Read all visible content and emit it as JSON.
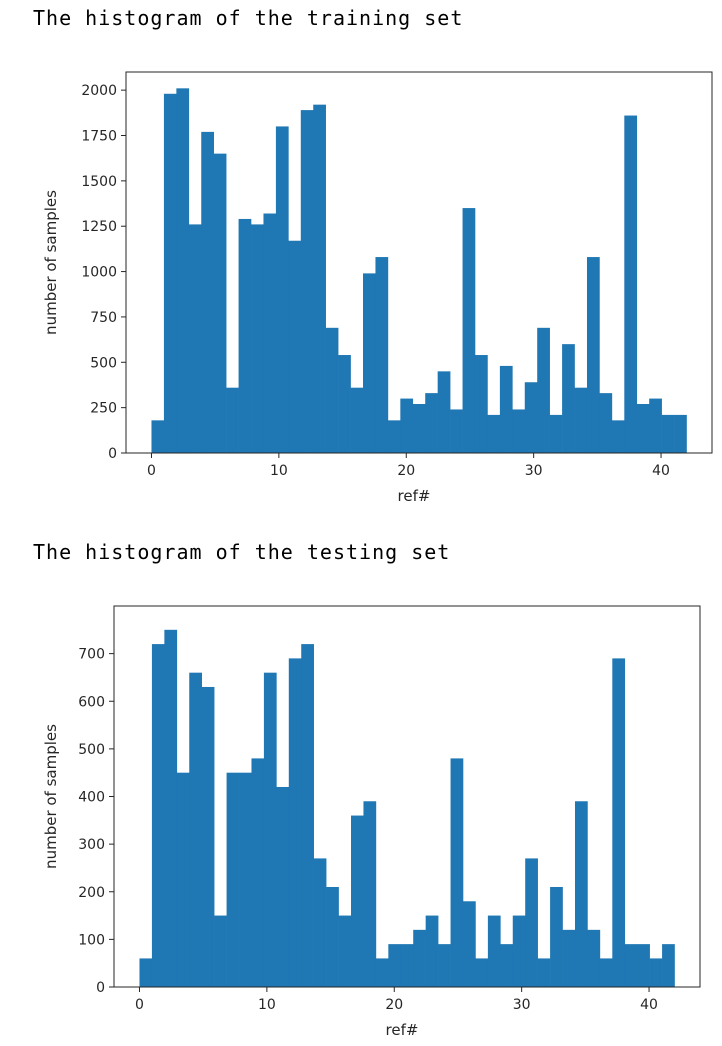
{
  "headings": {
    "training": "The histogram of the training set",
    "testing": "The histogram of the testing set"
  },
  "chart_data": [
    {
      "type": "bar",
      "id": "training",
      "xlabel": "ref#",
      "ylabel": "number of samples",
      "bin_start": 0,
      "bin_end": 42,
      "bins": 43,
      "xlim": [
        -2,
        44
      ],
      "ylim": [
        0,
        2100
      ],
      "xticks": [
        0,
        10,
        20,
        30,
        40
      ],
      "yticks": [
        0,
        250,
        500,
        750,
        1000,
        1250,
        1500,
        1750,
        2000
      ],
      "color": "#1f77b4",
      "values": [
        180,
        1980,
        2010,
        1260,
        1770,
        1650,
        360,
        1290,
        1260,
        1320,
        1800,
        1170,
        1890,
        1920,
        690,
        540,
        360,
        990,
        1080,
        180,
        300,
        270,
        330,
        450,
        240,
        1350,
        540,
        210,
        480,
        240,
        390,
        690,
        210,
        600,
        360,
        1080,
        330,
        180,
        1860,
        270,
        300,
        210,
        210
      ]
    },
    {
      "type": "bar",
      "id": "testing",
      "xlabel": "ref#",
      "ylabel": "number of samples",
      "bin_start": 0,
      "bin_end": 42,
      "bins": 43,
      "xlim": [
        -2,
        44
      ],
      "ylim": [
        0,
        800
      ],
      "xticks": [
        0,
        10,
        20,
        30,
        40
      ],
      "yticks": [
        0,
        100,
        200,
        300,
        400,
        500,
        600,
        700
      ],
      "color": "#1f77b4",
      "values": [
        60,
        720,
        750,
        450,
        660,
        630,
        150,
        450,
        450,
        480,
        660,
        420,
        690,
        720,
        270,
        210,
        150,
        360,
        390,
        60,
        90,
        90,
        120,
        150,
        90,
        480,
        180,
        60,
        150,
        90,
        150,
        270,
        60,
        210,
        120,
        390,
        120,
        60,
        690,
        90,
        90,
        60,
        90
      ]
    }
  ]
}
